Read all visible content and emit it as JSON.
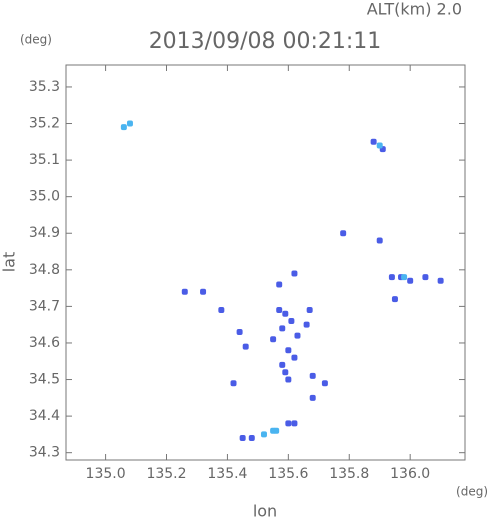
{
  "chart_data": {
    "type": "scatter",
    "header": "ALT(km) 2.0",
    "title": "2013/09/08 00:21:11",
    "y_unit": "(deg)",
    "x_unit": "(deg)",
    "xlabel": "lon",
    "ylabel": "lat",
    "xlim": [
      134.87,
      136.18
    ],
    "ylim": [
      34.28,
      35.36
    ],
    "xticks": [
      {
        "value": 135,
        "label": "135.0"
      },
      135.2,
      135.4,
      135.6,
      135.8,
      {
        "value": 136,
        "label": "136.0"
      }
    ],
    "yticks": [
      34.3,
      34.4,
      34.5,
      34.6,
      34.7,
      34.8,
      34.9,
      {
        "value": 35,
        "label": "35.0"
      },
      35.1,
      35.2,
      35.3
    ],
    "series": [
      {
        "color": "#4a5ce6",
        "x": [
          135.88,
          135.91,
          135.78,
          135.9,
          135.94,
          135.97,
          136.0,
          136.05,
          136.1,
          135.95,
          135.62,
          135.26,
          135.32,
          135.38,
          135.44,
          135.46,
          135.57,
          135.59,
          135.61,
          135.67,
          135.66,
          135.58,
          135.55,
          135.63,
          135.6,
          135.62,
          135.58,
          135.59,
          135.6,
          135.68,
          135.68,
          135.72,
          135.57,
          135.42,
          135.6,
          135.62,
          135.45,
          135.48
        ],
        "y": [
          35.15,
          35.13,
          34.9,
          34.88,
          34.78,
          34.78,
          34.77,
          34.78,
          34.77,
          34.72,
          34.79,
          34.74,
          34.74,
          34.69,
          34.63,
          34.59,
          34.69,
          34.68,
          34.66,
          34.69,
          34.65,
          34.64,
          34.61,
          34.62,
          34.58,
          34.56,
          34.54,
          34.52,
          34.5,
          34.51,
          34.45,
          34.49,
          34.76,
          34.49,
          34.38,
          34.38,
          34.34,
          34.34
        ]
      },
      {
        "color": "#4ab4f0",
        "x": [
          135.06,
          135.08,
          135.9,
          135.98,
          135.52,
          135.55,
          135.56
        ],
        "y": [
          35.19,
          35.2,
          35.14,
          34.78,
          34.35,
          34.36,
          34.36
        ]
      }
    ]
  }
}
